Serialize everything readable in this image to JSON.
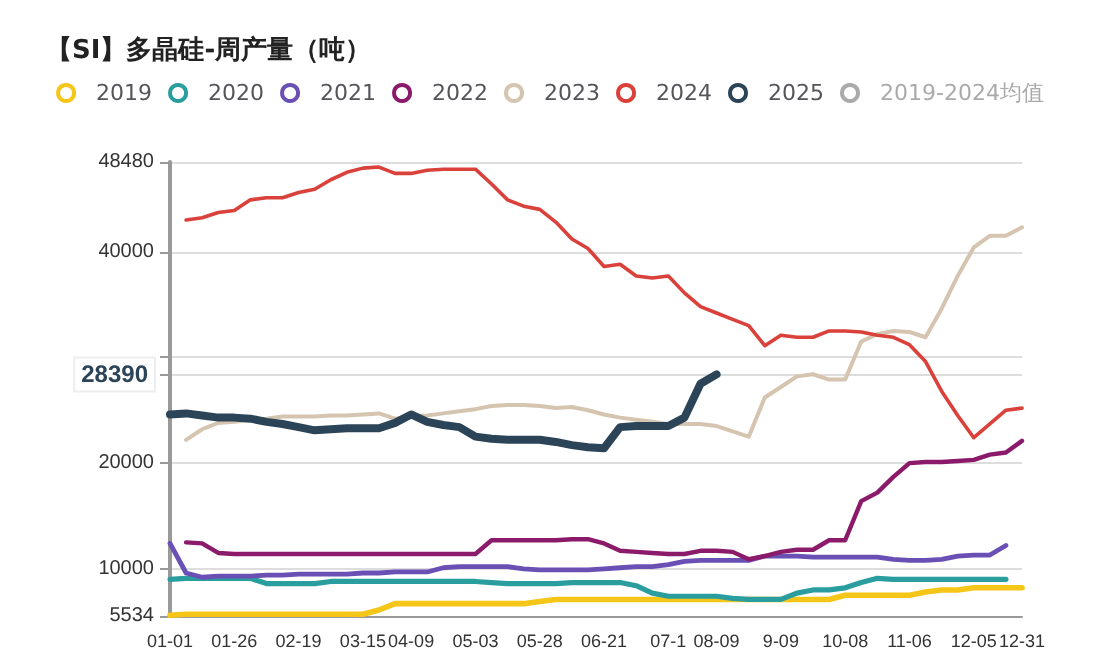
{
  "chart_data": {
    "type": "line",
    "title": "【SI】多晶硅-周产量（吨）",
    "categories": [
      "01-01",
      null,
      null,
      null,
      "01-26",
      null,
      null,
      null,
      "02-19",
      null,
      null,
      null,
      "03-15",
      null,
      null,
      "04-09",
      null,
      null,
      null,
      "05-03",
      null,
      null,
      null,
      "05-28",
      null,
      null,
      null,
      "06-21",
      null,
      null,
      null,
      "07-1",
      null,
      null,
      "08-09",
      null,
      null,
      null,
      "9-09",
      null,
      null,
      null,
      "10-08",
      null,
      null,
      null,
      "11-06",
      null,
      null,
      null,
      "12-05",
      null,
      null,
      "12-31"
    ],
    "series": [
      {
        "name": "2019",
        "color": "#f5c518",
        "values": [
          5600,
          5700,
          5700,
          5700,
          5700,
          5700,
          5700,
          5700,
          5700,
          5700,
          5700,
          5700,
          5700,
          6100,
          6700,
          6700,
          6700,
          6700,
          6700,
          6700,
          6700,
          6700,
          6700,
          6900,
          7100,
          7100,
          7100,
          7100,
          7100,
          7100,
          7100,
          7100,
          7100,
          7100,
          7100,
          7100,
          7100,
          7100,
          7100,
          7100,
          7100,
          7100,
          7500,
          7500,
          7500,
          7500,
          7500,
          7800,
          8000,
          8000,
          8200,
          8200,
          8200,
          8200
        ]
      },
      {
        "name": "2020",
        "color": "#2a9d9f",
        "values": [
          9000,
          9100,
          9100,
          9100,
          9100,
          9100,
          8600,
          8600,
          8600,
          8600,
          8800,
          8800,
          8800,
          8800,
          8800,
          8800,
          8800,
          8800,
          8800,
          8800,
          8700,
          8600,
          8600,
          8600,
          8600,
          8700,
          8700,
          8700,
          8700,
          8400,
          7700,
          7400,
          7400,
          7400,
          7400,
          7200,
          7100,
          7100,
          7100,
          7700,
          8000,
          8000,
          8200,
          8700,
          9100,
          9000,
          9000,
          9000,
          9000,
          9000,
          9000,
          9000,
          9000,
          null
        ]
      },
      {
        "name": "2021",
        "color": "#6a4fb5",
        "values": [
          12400,
          9600,
          9200,
          9300,
          9300,
          9300,
          9400,
          9400,
          9500,
          9500,
          9500,
          9500,
          9600,
          9600,
          9700,
          9700,
          9700,
          10100,
          10200,
          10200,
          10200,
          10200,
          10000,
          9900,
          9900,
          9900,
          9900,
          10000,
          10100,
          10200,
          10200,
          10400,
          10700,
          10800,
          10800,
          10800,
          10800,
          11200,
          11200,
          11200,
          11100,
          11100,
          11100,
          11100,
          11100,
          10900,
          10800,
          10800,
          10900,
          11200,
          11300,
          11300,
          12200,
          null
        ]
      },
      {
        "name": "2022",
        "color": "#8b1a6b",
        "values": [
          null,
          12500,
          12400,
          11500,
          11400,
          11400,
          11400,
          11400,
          11400,
          11400,
          11400,
          11400,
          11400,
          11400,
          11400,
          11400,
          11400,
          11400,
          11400,
          11400,
          12700,
          12700,
          12700,
          12700,
          12700,
          12800,
          12800,
          12400,
          11700,
          11600,
          11500,
          11400,
          11400,
          11700,
          11700,
          11600,
          10900,
          11200,
          11600,
          11800,
          11800,
          12700,
          12700,
          16400,
          17200,
          18700,
          20000,
          20100,
          20100,
          20200,
          20300,
          20800,
          21000,
          22100
        ]
      },
      {
        "name": "2023",
        "color": "#d4c4b0",
        "values": [
          null,
          22200,
          23200,
          23800,
          23900,
          24100,
          24200,
          24400,
          24400,
          24400,
          24500,
          24500,
          24600,
          24700,
          24200,
          24400,
          24500,
          24700,
          24900,
          25100,
          25400,
          25500,
          25500,
          25400,
          25200,
          25300,
          25000,
          24600,
          24300,
          24100,
          23900,
          23700,
          23700,
          23700,
          23500,
          23000,
          22500,
          26200,
          27200,
          28200,
          28400,
          27900,
          27900,
          31500,
          32200,
          32500,
          32400,
          31900,
          34600,
          37700,
          40400,
          41500,
          41500,
          42300
        ]
      },
      {
        "name": "2024",
        "color": "#d9413a",
        "values": [
          null,
          43000,
          43200,
          43700,
          43900,
          44900,
          45100,
          45100,
          45600,
          45900,
          46800,
          47500,
          47900,
          48000,
          47400,
          47400,
          47700,
          47800,
          47800,
          47800,
          46400,
          44900,
          44300,
          44000,
          42800,
          41200,
          40300,
          38600,
          38800,
          37700,
          37500,
          37700,
          36100,
          34800,
          34200,
          33600,
          33000,
          31100,
          32100,
          31900,
          31900,
          32500,
          32500,
          32400,
          32100,
          31900,
          31200,
          29600,
          26800,
          24500,
          22400,
          23700,
          25000,
          25200
        ]
      },
      {
        "name": "2025",
        "color": "#2c4457",
        "values": [
          24600,
          24700,
          24500,
          24300,
          24300,
          24200,
          23900,
          23700,
          23400,
          23100,
          23200,
          23300,
          23300,
          23300,
          23800,
          24600,
          23900,
          23600,
          23400,
          22500,
          22300,
          22200,
          22200,
          22200,
          22000,
          21700,
          21500,
          21400,
          23400,
          23500,
          23500,
          23500,
          24300,
          27500,
          28390,
          null,
          null,
          null,
          null,
          null,
          null,
          null,
          null,
          null,
          null,
          null,
          null,
          null,
          null,
          null,
          null,
          null,
          null,
          null
        ]
      },
      {
        "name": "2019-2024均值",
        "color": "#aaaaaa",
        "values": [
          null,
          null,
          null,
          null,
          null,
          null,
          null,
          null,
          null,
          null,
          null,
          null,
          null,
          null,
          null,
          null,
          null,
          null,
          null,
          null,
          null,
          null,
          null,
          null,
          null,
          null,
          null,
          null,
          null,
          null,
          null,
          null,
          null,
          null,
          null,
          null,
          null,
          null,
          null,
          null,
          null,
          null,
          null,
          null,
          null,
          null,
          null,
          null,
          null,
          null,
          null,
          null,
          null,
          null
        ]
      }
    ],
    "ylim": [
      5534,
      48480
    ],
    "yticks": [
      5534,
      10000,
      20000,
      28390,
      {
        "value": 30000,
        "label": null
      },
      40000,
      48480
    ],
    "grid": "y",
    "legend": "top",
    "line_style": "solid"
  }
}
